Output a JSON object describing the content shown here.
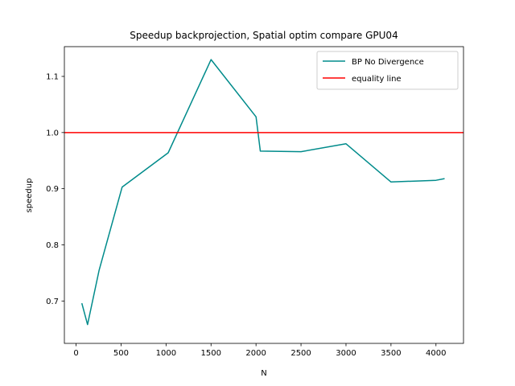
{
  "chart_data": {
    "type": "line",
    "title": "Speedup backprojection, Spatial optim compare GPU04",
    "xlabel": "N",
    "ylabel": "speedup",
    "xlim": [
      -130,
      4306
    ],
    "ylim": [
      0.6245,
      1.153
    ],
    "xticks": [
      0,
      500,
      1000,
      1500,
      2000,
      2500,
      3000,
      3500,
      4000
    ],
    "yticks": [
      0.7,
      0.8,
      0.9,
      1.0,
      1.1
    ],
    "ytick_labels": [
      "0.7",
      "0.8",
      "0.9",
      "1.0",
      "1.1"
    ],
    "grid": false,
    "legend_position": "top-right",
    "series": [
      {
        "name": "BP No Divergence",
        "color": "#008b8b",
        "x": [
          64,
          128,
          256,
          512,
          1024,
          1500,
          2000,
          2048,
          2500,
          3000,
          3500,
          4000,
          4096
        ],
        "y": [
          0.696,
          0.658,
          0.755,
          0.903,
          0.964,
          1.13,
          1.028,
          0.967,
          0.966,
          0.98,
          0.912,
          0.915,
          0.918
        ]
      },
      {
        "name": "equality line",
        "color": "#ff0000",
        "hline": 1.0
      }
    ]
  }
}
